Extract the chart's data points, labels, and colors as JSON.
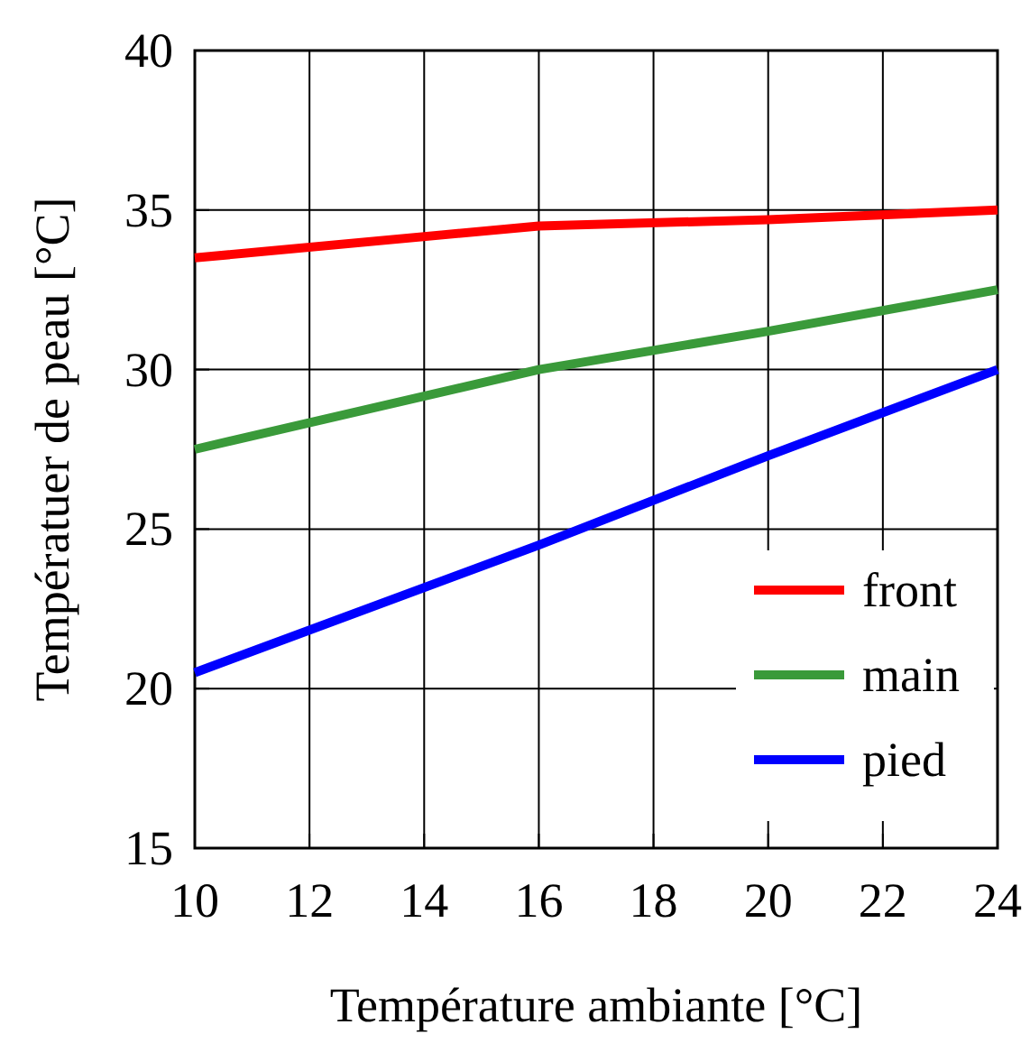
{
  "chart_data": {
    "type": "line",
    "xlabel": "Température ambiante [°C]",
    "ylabel": "Températuer de peau [°C]",
    "x": [
      10,
      16,
      20,
      24
    ],
    "series": [
      {
        "name": "front",
        "color": "#ff0000",
        "values": [
          33.5,
          34.5,
          34.7,
          35
        ]
      },
      {
        "name": "main",
        "color": "#3a9a3a",
        "values": [
          27.5,
          30,
          31.2,
          32.5
        ]
      },
      {
        "name": "pied",
        "color": "#0000ff",
        "values": [
          20.5,
          24.5,
          27.3,
          30
        ]
      }
    ],
    "xlim": [
      10,
      24
    ],
    "xticks": [
      10,
      12,
      14,
      16,
      18,
      20,
      22,
      24
    ],
    "ylim": [
      15,
      40
    ],
    "yticks": [
      15,
      20,
      25,
      30,
      35,
      40
    ],
    "grid": true,
    "legend": "bottom right",
    "marker": "none",
    "line_style": "solid"
  }
}
